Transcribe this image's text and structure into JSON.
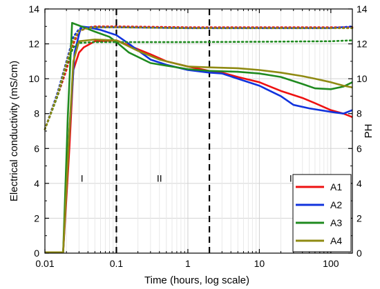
{
  "chart_data": {
    "type": "line",
    "xlabel": "Time (hours, log scale)",
    "ylabel_left": "Electrical conductivity (mS/cm)",
    "ylabel_right": "PH",
    "x_scale": "log",
    "xlim": [
      0.01,
      200
    ],
    "ylim_left": [
      0,
      14
    ],
    "ylim_right": [
      0,
      14
    ],
    "x_ticks": [
      0.01,
      0.1,
      1,
      10,
      100
    ],
    "x_tick_labels": [
      "0.01",
      "0.1",
      "1",
      "10",
      "100"
    ],
    "y_ticks": [
      0,
      2,
      4,
      6,
      8,
      10,
      12,
      14
    ],
    "y_tick_labels": [
      "0",
      "2",
      "4",
      "6",
      "8",
      "10",
      "12",
      "14"
    ],
    "grid": true,
    "legend_position": "bottom-right",
    "phase_boundaries": [
      0.1,
      2
    ],
    "phase_labels": [
      {
        "text": "I",
        "x": 0.033,
        "y": 4.3
      },
      {
        "text": "II",
        "x": 0.4,
        "y": 4.3
      },
      {
        "text": "III",
        "x": 30,
        "y": 4.3
      }
    ],
    "series": [
      {
        "name": "A1",
        "color": "#ee1111",
        "conductivity": [
          [
            0.01,
            0.05
          ],
          [
            0.018,
            0.05
          ],
          [
            0.022,
            6
          ],
          [
            0.025,
            10.5
          ],
          [
            0.03,
            11.5
          ],
          [
            0.035,
            11.8
          ],
          [
            0.05,
            12.15
          ],
          [
            0.1,
            12.2
          ],
          [
            0.15,
            11.9
          ],
          [
            0.3,
            11.4
          ],
          [
            0.5,
            11.0
          ],
          [
            1,
            10.7
          ],
          [
            2,
            10.45
          ],
          [
            3,
            10.35
          ],
          [
            5,
            10.1
          ],
          [
            10,
            9.8
          ],
          [
            20,
            9.3
          ],
          [
            40,
            8.9
          ],
          [
            60,
            8.6
          ],
          [
            100,
            8.2
          ],
          [
            150,
            8.0
          ],
          [
            200,
            7.8
          ]
        ],
        "ph": [
          [
            0.01,
            7.1
          ],
          [
            0.015,
            9
          ],
          [
            0.02,
            10.5
          ],
          [
            0.025,
            12.0
          ],
          [
            0.03,
            12.7
          ],
          [
            0.04,
            12.95
          ],
          [
            0.05,
            13.0
          ],
          [
            0.1,
            13.0
          ],
          [
            1,
            12.95
          ],
          [
            10,
            12.95
          ],
          [
            100,
            12.95
          ],
          [
            200,
            12.95
          ]
        ]
      },
      {
        "name": "A2",
        "color": "#1133dd",
        "conductivity": [
          [
            0.01,
            0.05
          ],
          [
            0.018,
            0.05
          ],
          [
            0.022,
            7
          ],
          [
            0.026,
            11.5
          ],
          [
            0.032,
            13.0
          ],
          [
            0.04,
            12.95
          ],
          [
            0.06,
            12.8
          ],
          [
            0.1,
            12.5
          ],
          [
            0.15,
            12.0
          ],
          [
            0.3,
            11.1
          ],
          [
            0.5,
            10.8
          ],
          [
            1,
            10.5
          ],
          [
            2,
            10.35
          ],
          [
            3,
            10.3
          ],
          [
            5,
            10.0
          ],
          [
            10,
            9.6
          ],
          [
            20,
            9.0
          ],
          [
            30,
            8.5
          ],
          [
            50,
            8.3
          ],
          [
            100,
            8.1
          ],
          [
            150,
            8.0
          ],
          [
            200,
            8.2
          ]
        ],
        "ph": [
          [
            0.01,
            7.1
          ],
          [
            0.015,
            9.2
          ],
          [
            0.02,
            11
          ],
          [
            0.025,
            12.4
          ],
          [
            0.03,
            12.85
          ],
          [
            0.04,
            12.95
          ],
          [
            0.05,
            12.95
          ],
          [
            0.1,
            12.95
          ],
          [
            1,
            12.9
          ],
          [
            10,
            12.9
          ],
          [
            100,
            12.9
          ],
          [
            200,
            13.0
          ]
        ]
      },
      {
        "name": "A3",
        "color": "#1f8a1f",
        "conductivity": [
          [
            0.01,
            0.05
          ],
          [
            0.018,
            0.05
          ],
          [
            0.021,
            8
          ],
          [
            0.024,
            13.2
          ],
          [
            0.03,
            13.05
          ],
          [
            0.05,
            12.7
          ],
          [
            0.08,
            12.4
          ],
          [
            0.1,
            12.1
          ],
          [
            0.15,
            11.5
          ],
          [
            0.3,
            10.9
          ],
          [
            0.5,
            10.75
          ],
          [
            1,
            10.55
          ],
          [
            2,
            10.45
          ],
          [
            5,
            10.4
          ],
          [
            10,
            10.3
          ],
          [
            20,
            10.1
          ],
          [
            40,
            9.7
          ],
          [
            60,
            9.45
          ],
          [
            100,
            9.4
          ],
          [
            150,
            9.55
          ],
          [
            200,
            9.8
          ]
        ],
        "ph": [
          [
            0.01,
            7.1
          ],
          [
            0.015,
            9
          ],
          [
            0.02,
            10.8
          ],
          [
            0.025,
            11.8
          ],
          [
            0.03,
            12.05
          ],
          [
            0.05,
            12.1
          ],
          [
            0.1,
            12.1
          ],
          [
            1,
            12.1
          ],
          [
            10,
            12.12
          ],
          [
            100,
            12.15
          ],
          [
            200,
            12.2
          ]
        ]
      },
      {
        "name": "A4",
        "color": "#8f8a12",
        "conductivity": [
          [
            0.01,
            0.05
          ],
          [
            0.018,
            0.05
          ],
          [
            0.022,
            7
          ],
          [
            0.025,
            11
          ],
          [
            0.03,
            12.15
          ],
          [
            0.05,
            12.25
          ],
          [
            0.1,
            12.2
          ],
          [
            0.2,
            11.6
          ],
          [
            0.4,
            11.1
          ],
          [
            0.7,
            10.85
          ],
          [
            1,
            10.7
          ],
          [
            2,
            10.65
          ],
          [
            5,
            10.6
          ],
          [
            10,
            10.5
          ],
          [
            20,
            10.35
          ],
          [
            40,
            10.15
          ],
          [
            60,
            10.0
          ],
          [
            100,
            9.8
          ],
          [
            150,
            9.6
          ],
          [
            200,
            9.5
          ]
        ],
        "ph": [
          [
            0.01,
            7.1
          ],
          [
            0.015,
            9.1
          ],
          [
            0.02,
            10.9
          ],
          [
            0.025,
            12.2
          ],
          [
            0.03,
            12.75
          ],
          [
            0.04,
            12.9
          ],
          [
            0.05,
            12.95
          ],
          [
            0.1,
            12.95
          ],
          [
            1,
            12.9
          ],
          [
            10,
            12.9
          ],
          [
            100,
            12.9
          ],
          [
            200,
            12.9
          ]
        ]
      }
    ]
  }
}
